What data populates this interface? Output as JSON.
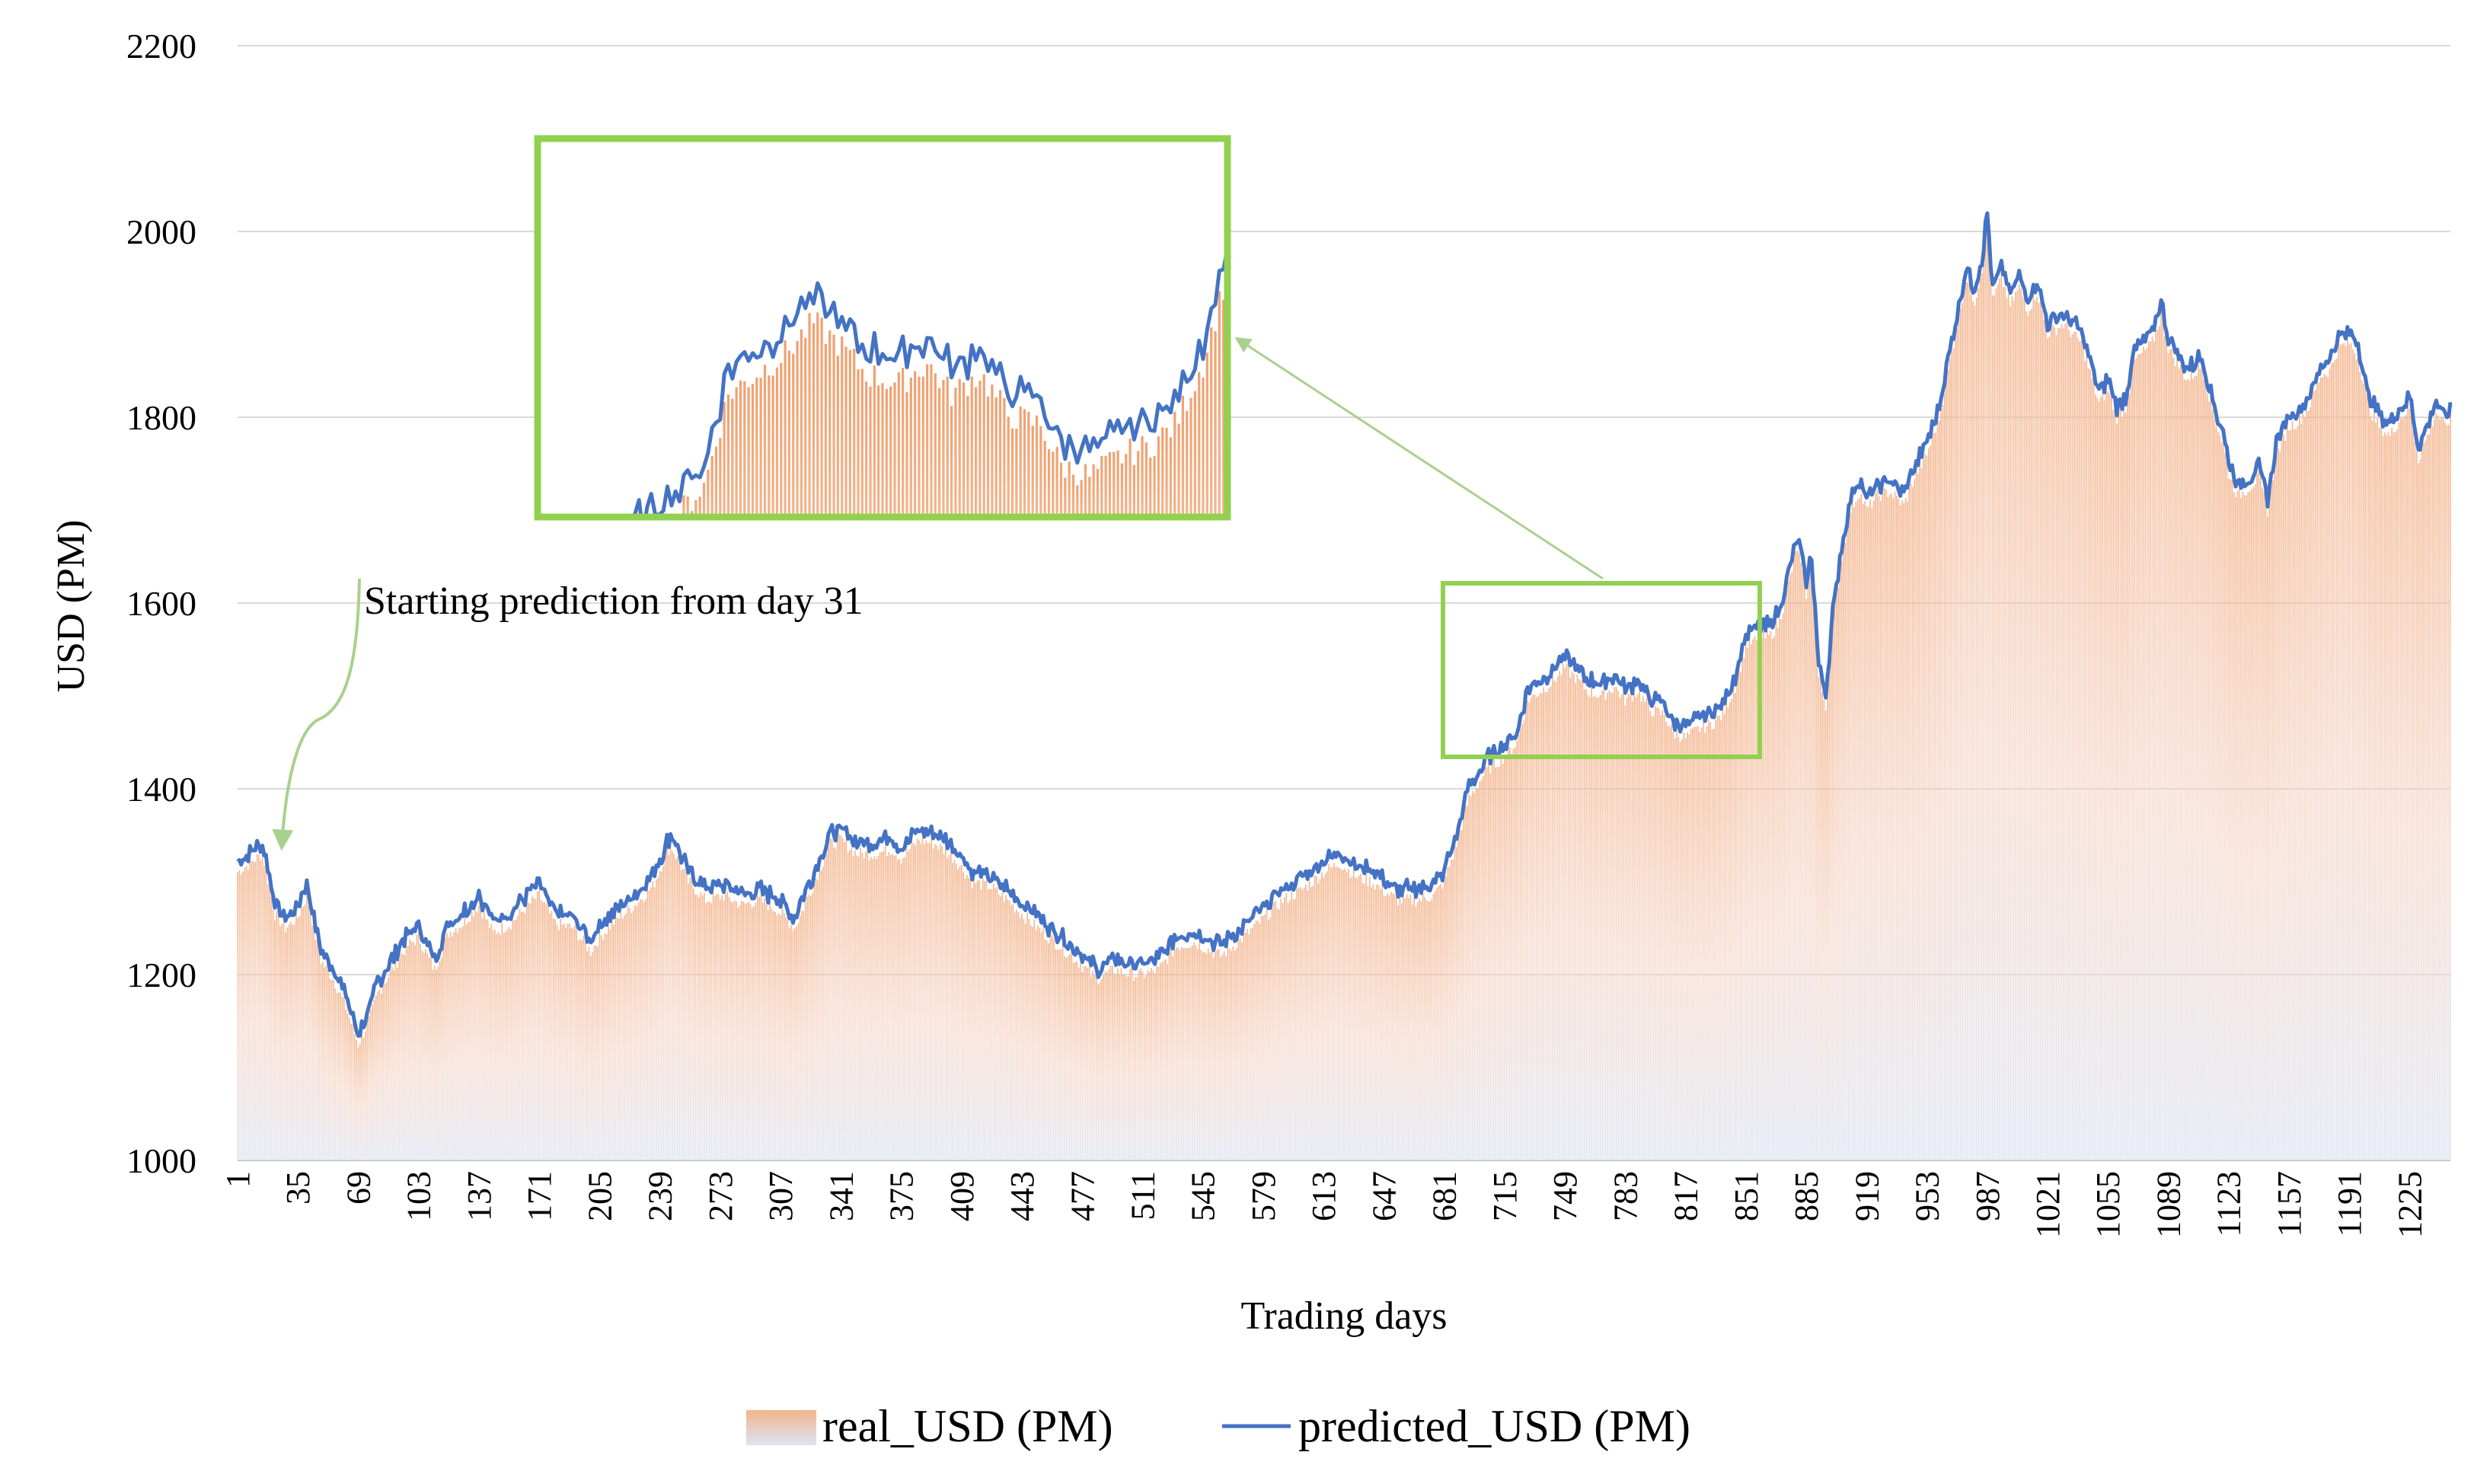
{
  "chart_data": {
    "type": "area",
    "title": "",
    "xlabel": "Trading days",
    "ylabel": "USD (PM)",
    "ylim": [
      1000,
      2200
    ],
    "xlim": [
      1,
      1248
    ],
    "yticks": [
      "1000",
      "1200",
      "1400",
      "1600",
      "1800",
      "2000",
      "2200"
    ],
    "xticks": [
      "1",
      "35",
      "69",
      "103",
      "137",
      "171",
      "205",
      "239",
      "273",
      "307",
      "341",
      "375",
      "409",
      "443",
      "477",
      "511",
      "545",
      "579",
      "613",
      "647",
      "681",
      "715",
      "749",
      "783",
      "817",
      "851",
      "885",
      "919",
      "953",
      "987",
      "1021",
      "1055",
      "1089",
      "1123",
      "1157",
      "1191",
      "1225"
    ],
    "grid": true,
    "legend_position": "bottom",
    "series": [
      {
        "name": "real_USD (PM)",
        "style": "bars",
        "color": "#f2b48c",
        "anchors": [
          [
            1,
            1310
          ],
          [
            15,
            1330
          ],
          [
            22,
            1265
          ],
          [
            28,
            1250
          ],
          [
            35,
            1262
          ],
          [
            40,
            1285
          ],
          [
            48,
            1215
          ],
          [
            55,
            1195
          ],
          [
            62,
            1165
          ],
          [
            69,
            1125
          ],
          [
            75,
            1150
          ],
          [
            80,
            1180
          ],
          [
            88,
            1205
          ],
          [
            96,
            1230
          ],
          [
            103,
            1240
          ],
          [
            112,
            1205
          ],
          [
            120,
            1245
          ],
          [
            128,
            1255
          ],
          [
            137,
            1275
          ],
          [
            145,
            1245
          ],
          [
            155,
            1255
          ],
          [
            165,
            1275
          ],
          [
            171,
            1285
          ],
          [
            180,
            1255
          ],
          [
            190,
            1250
          ],
          [
            200,
            1225
          ],
          [
            205,
            1240
          ],
          [
            215,
            1260
          ],
          [
            225,
            1275
          ],
          [
            235,
            1295
          ],
          [
            245,
            1340
          ],
          [
            255,
            1300
          ],
          [
            265,
            1280
          ],
          [
            275,
            1285
          ],
          [
            285,
            1275
          ],
          [
            295,
            1280
          ],
          [
            305,
            1270
          ],
          [
            315,
            1250
          ],
          [
            325,
            1295
          ],
          [
            335,
            1340
          ],
          [
            341,
            1345
          ],
          [
            350,
            1330
          ],
          [
            360,
            1330
          ],
          [
            370,
            1335
          ],
          [
            375,
            1325
          ],
          [
            385,
            1345
          ],
          [
            395,
            1340
          ],
          [
            405,
            1325
          ],
          [
            415,
            1300
          ],
          [
            425,
            1295
          ],
          [
            435,
            1280
          ],
          [
            443,
            1265
          ],
          [
            455,
            1245
          ],
          [
            465,
            1230
          ],
          [
            477,
            1210
          ],
          [
            485,
            1195
          ],
          [
            495,
            1205
          ],
          [
            505,
            1200
          ],
          [
            511,
            1200
          ],
          [
            520,
            1205
          ],
          [
            530,
            1230
          ],
          [
            540,
            1235
          ],
          [
            545,
            1230
          ],
          [
            555,
            1220
          ],
          [
            565,
            1235
          ],
          [
            579,
            1260
          ],
          [
            590,
            1280
          ],
          [
            600,
            1290
          ],
          [
            613,
            1310
          ],
          [
            622,
            1320
          ],
          [
            632,
            1305
          ],
          [
            640,
            1300
          ],
          [
            647,
            1290
          ],
          [
            655,
            1280
          ],
          [
            665,
            1280
          ],
          [
            675,
            1285
          ],
          [
            681,
            1300
          ],
          [
            688,
            1340
          ],
          [
            695,
            1390
          ],
          [
            705,
            1420
          ],
          [
            715,
            1435
          ],
          [
            722,
            1450
          ],
          [
            728,
            1495
          ],
          [
            735,
            1505
          ],
          [
            742,
            1515
          ],
          [
            749,
            1530
          ],
          [
            755,
            1520
          ],
          [
            762,
            1505
          ],
          [
            770,
            1500
          ],
          [
            777,
            1510
          ],
          [
            783,
            1495
          ],
          [
            790,
            1505
          ],
          [
            797,
            1485
          ],
          [
            805,
            1480
          ],
          [
            810,
            1460
          ],
          [
            817,
            1455
          ],
          [
            825,
            1465
          ],
          [
            832,
            1470
          ],
          [
            838,
            1480
          ],
          [
            845,
            1510
          ],
          [
            851,
            1555
          ],
          [
            858,
            1560
          ],
          [
            865,
            1565
          ],
          [
            870,
            1580
          ],
          [
            875,
            1620
          ],
          [
            880,
            1660
          ],
          [
            885,
            1610
          ],
          [
            888,
            1640
          ],
          [
            892,
            1520
          ],
          [
            896,
            1490
          ],
          [
            900,
            1580
          ],
          [
            905,
            1650
          ],
          [
            910,
            1700
          ],
          [
            915,
            1720
          ],
          [
            919,
            1700
          ],
          [
            925,
            1715
          ],
          [
            932,
            1720
          ],
          [
            940,
            1705
          ],
          [
            946,
            1735
          ],
          [
            953,
            1760
          ],
          [
            960,
            1800
          ],
          [
            965,
            1850
          ],
          [
            970,
            1900
          ],
          [
            975,
            1950
          ],
          [
            980,
            1925
          ],
          [
            985,
            1970
          ],
          [
            987,
            2010
          ],
          [
            990,
            1925
          ],
          [
            995,
            1950
          ],
          [
            1000,
            1920
          ],
          [
            1005,
            1940
          ],
          [
            1010,
            1915
          ],
          [
            1015,
            1935
          ],
          [
            1021,
            1890
          ],
          [
            1030,
            1900
          ],
          [
            1040,
            1880
          ],
          [
            1050,
            1815
          ],
          [
            1055,
            1830
          ],
          [
            1060,
            1800
          ],
          [
            1065,
            1810
          ],
          [
            1070,
            1860
          ],
          [
            1080,
            1880
          ],
          [
            1085,
            1910
          ],
          [
            1089,
            1875
          ],
          [
            1095,
            1855
          ],
          [
            1100,
            1840
          ],
          [
            1108,
            1855
          ],
          [
            1115,
            1800
          ],
          [
            1120,
            1770
          ],
          [
            1123,
            1740
          ],
          [
            1128,
            1715
          ],
          [
            1135,
            1725
          ],
          [
            1140,
            1735
          ],
          [
            1145,
            1700
          ],
          [
            1150,
            1760
          ],
          [
            1157,
            1790
          ],
          [
            1162,
            1795
          ],
          [
            1168,
            1810
          ],
          [
            1175,
            1845
          ],
          [
            1180,
            1850
          ],
          [
            1185,
            1875
          ],
          [
            1191,
            1880
          ],
          [
            1196,
            1865
          ],
          [
            1202,
            1810
          ],
          [
            1208,
            1790
          ],
          [
            1214,
            1780
          ],
          [
            1220,
            1800
          ],
          [
            1225,
            1810
          ],
          [
            1230,
            1755
          ],
          [
            1235,
            1780
          ],
          [
            1240,
            1805
          ],
          [
            1245,
            1790
          ],
          [
            1248,
            1800
          ]
        ]
      },
      {
        "name": "predicted_USD (PM)",
        "style": "line",
        "color": "#4472c4",
        "offset": 12
      }
    ],
    "annotations": [
      {
        "text": "Starting prediction from day 31",
        "type": "arrow",
        "target_day": 31
      },
      {
        "type": "zoom-inset",
        "region_x": [
          681,
          851
        ],
        "region_y": [
          1435,
          1620
        ]
      }
    ]
  },
  "legend": {
    "real_label": "real_USD (PM)",
    "pred_label": "predicted_USD (PM)"
  },
  "colors": {
    "inset_border": "#92d050",
    "arrow": "#a9d18e",
    "grid": "#d9d9d9",
    "bar": "#f2b48c",
    "line": "#4472c4"
  }
}
